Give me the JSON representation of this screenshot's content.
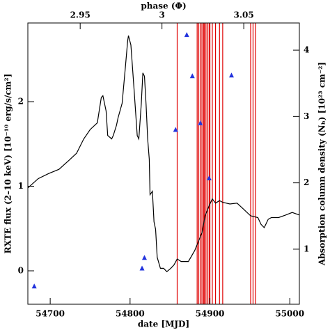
{
  "chart_data": {
    "type": "line",
    "xlabel": "date [MJD]",
    "x2label": "phase (Φ)",
    "ylabel": "RXTE flux (2–10 keV) [10⁻¹⁰ erg/s/cm²]",
    "y2label": "Absorption column density (Nₕ) [10²³ cm⁻²]",
    "xlim": [
      54672,
      55012
    ],
    "xticks": [
      54700,
      54800,
      54900,
      55000
    ],
    "x2lim": [
      2.918,
      3.084
    ],
    "x2ticks": [
      2.95,
      3,
      3.05
    ],
    "ylim": [
      -0.395,
      2.93
    ],
    "yticks": [
      0,
      1,
      2
    ],
    "y2lim": [
      0.17,
      4.41
    ],
    "y2ticks": [
      1,
      2,
      3,
      4
    ],
    "series": [
      {
        "color": "#000000",
        "x": [
          54672,
          54685,
          54698,
          54711,
          54724,
          54733,
          54742,
          54750,
          54759,
          54764,
          54766,
          54770,
          54772,
          54777,
          54779,
          54783,
          54785,
          54790,
          54794,
          54797,
          54798,
          54801,
          54805,
          54809,
          54811,
          54814,
          54816,
          54818,
          54820,
          54822,
          54824,
          54825,
          54828,
          54830,
          54832,
          54834,
          54838,
          54842,
          54846,
          54851,
          54855,
          54859,
          54864,
          54868,
          54873,
          54881,
          54890,
          54894,
          54899,
          54903,
          54907,
          54912,
          54916,
          54925,
          54934,
          54942,
          54951,
          54960,
          54964,
          54968,
          54973,
          54977,
          54986,
          54995,
          55003,
          55012
        ],
        "values": [
          0.98,
          1.09,
          1.15,
          1.2,
          1.31,
          1.39,
          1.56,
          1.67,
          1.75,
          2.05,
          2.07,
          1.89,
          1.6,
          1.56,
          1.6,
          1.72,
          1.81,
          1.98,
          2.39,
          2.72,
          2.78,
          2.67,
          2.14,
          1.6,
          1.56,
          1.97,
          2.34,
          2.3,
          1.97,
          1.56,
          1.32,
          0.9,
          0.94,
          0.58,
          0.49,
          0.16,
          0.03,
          0.03,
          -0.01,
          0.03,
          0.07,
          0.14,
          0.11,
          0.11,
          0.11,
          0.24,
          0.45,
          0.65,
          0.77,
          0.85,
          0.8,
          0.83,
          0.81,
          0.79,
          0.8,
          0.73,
          0.65,
          0.63,
          0.55,
          0.51,
          0.61,
          0.63,
          0.63,
          0.66,
          0.69,
          0.66
        ]
      },
      {
        "color": "#2233dd",
        "marker": "triangle",
        "axis": "y2",
        "x": [
          54680,
          54815,
          54818,
          54857,
          54871,
          54878,
          54888,
          54899,
          54927
        ],
        "values": [
          0.44,
          0.71,
          0.87,
          2.8,
          4.23,
          3.61,
          2.9,
          2.07,
          3.62
        ]
      }
    ],
    "events": {
      "color": "#e00000",
      "x": [
        54859,
        54884,
        54886,
        54888,
        54890,
        54892,
        54893,
        54895,
        54897,
        54899,
        54900,
        54903,
        54907,
        54912,
        54916,
        54951,
        54954,
        54957
      ]
    }
  }
}
